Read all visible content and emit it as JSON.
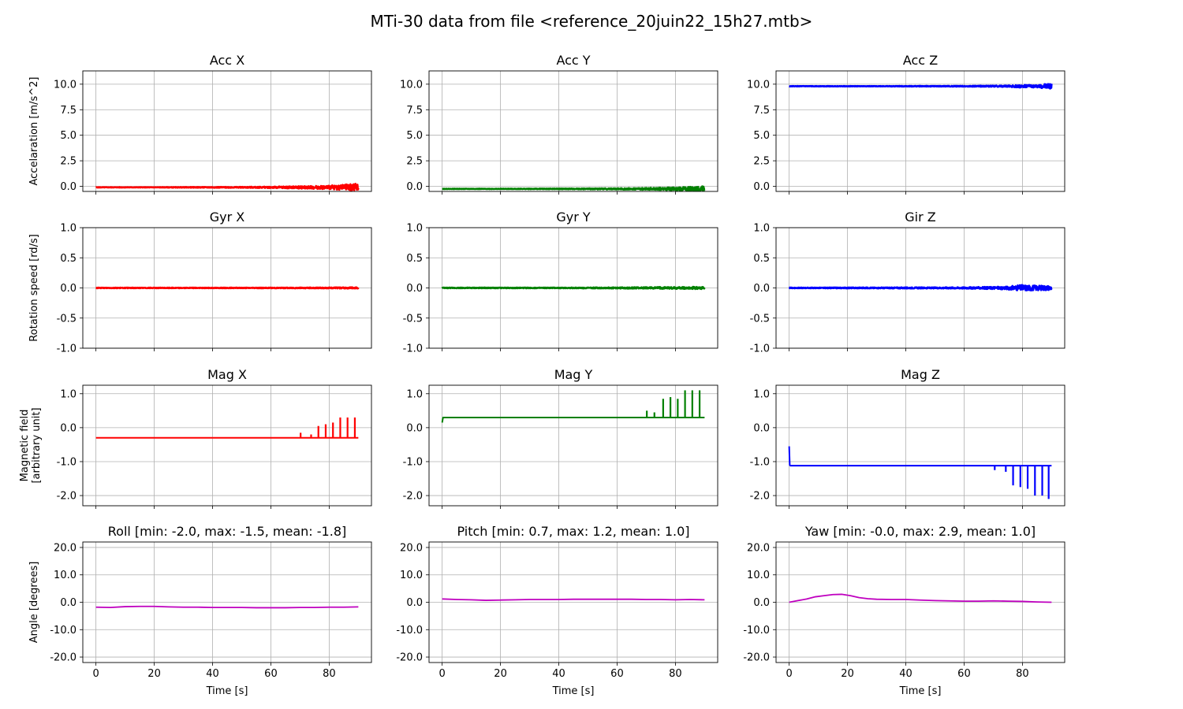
{
  "figure_title": "MTi-30 data from file <reference_20juin22_15h27.mtb>",
  "colors": {
    "acc_x": "#ff0000",
    "acc_y": "#008000",
    "acc_z": "#0000ff",
    "angle": "#bf00bf",
    "grid": "#b0b0b0"
  },
  "row_labels": {
    "row0": [
      "Accelaration [m/s^2]"
    ],
    "row1": [
      "Rotation speed [rd/s]"
    ],
    "row2": [
      "Magnetic field",
      "[arbitrary unit]"
    ],
    "row3": [
      "Angle [degrees]"
    ]
  },
  "xlabel": "Time [s]",
  "chart_data": [
    {
      "type": "line",
      "title": "Acc X",
      "color": "#ff0000",
      "xlim": [
        -4.5,
        94.5
      ],
      "ylim": [
        -0.5,
        11.3
      ],
      "yticks": [
        0.0,
        2.5,
        5.0,
        7.5,
        10.0
      ],
      "ytick_labels": [
        "0.0",
        "2.5",
        "5.0",
        "7.5",
        "10.0"
      ],
      "xticks": [
        0,
        20,
        40,
        60,
        80
      ],
      "xtick_labels": [
        "0",
        "20",
        "40",
        "60",
        "80"
      ],
      "x": [
        0,
        10,
        20,
        30,
        40,
        50,
        60,
        65,
        70,
        75,
        80,
        85,
        88,
        90
      ],
      "y": [
        -0.1,
        -0.1,
        -0.1,
        -0.1,
        -0.1,
        -0.1,
        -0.1,
        -0.1,
        -0.1,
        -0.1,
        -0.1,
        -0.1,
        -0.1,
        -0.1
      ],
      "noise": [
        0.02,
        0.02,
        0.02,
        0.03,
        0.04,
        0.05,
        0.07,
        0.1,
        0.12,
        0.15,
        0.18,
        0.25,
        0.4,
        0.3
      ]
    },
    {
      "type": "line",
      "title": "Acc Y",
      "color": "#008000",
      "xlim": [
        -4.5,
        94.5
      ],
      "ylim": [
        -0.5,
        11.3
      ],
      "yticks": [
        0.0,
        2.5,
        5.0,
        7.5,
        10.0
      ],
      "ytick_labels": [
        "0.0",
        "2.5",
        "5.0",
        "7.5",
        "10.0"
      ],
      "xticks": [
        0,
        20,
        40,
        60,
        80
      ],
      "xtick_labels": [
        "0",
        "20",
        "40",
        "60",
        "80"
      ],
      "x": [
        0,
        10,
        20,
        30,
        40,
        50,
        60,
        65,
        70,
        75,
        80,
        85,
        88,
        90
      ],
      "y": [
        -0.25,
        -0.25,
        -0.25,
        -0.25,
        -0.25,
        -0.25,
        -0.25,
        -0.25,
        -0.25,
        -0.25,
        -0.25,
        -0.25,
        -0.25,
        -0.25
      ],
      "noise": [
        0.02,
        0.02,
        0.02,
        0.03,
        0.04,
        0.05,
        0.06,
        0.08,
        0.1,
        0.12,
        0.15,
        0.2,
        0.25,
        0.25
      ]
    },
    {
      "type": "line",
      "title": "Acc Z",
      "color": "#0000ff",
      "xlim": [
        -4.5,
        94.5
      ],
      "ylim": [
        -0.5,
        11.3
      ],
      "yticks": [
        0.0,
        2.5,
        5.0,
        7.5,
        10.0
      ],
      "ytick_labels": [
        "0.0",
        "2.5",
        "5.0",
        "7.5",
        "10.0"
      ],
      "xticks": [
        0,
        20,
        40,
        60,
        80
      ],
      "xtick_labels": [
        "0",
        "20",
        "40",
        "60",
        "80"
      ],
      "x": [
        0,
        10,
        20,
        30,
        40,
        50,
        60,
        65,
        70,
        75,
        80,
        85,
        88,
        90
      ],
      "y": [
        9.8,
        9.8,
        9.8,
        9.8,
        9.8,
        9.8,
        9.8,
        9.8,
        9.8,
        9.8,
        9.8,
        9.8,
        9.8,
        9.8
      ],
      "noise": [
        0.02,
        0.02,
        0.02,
        0.02,
        0.03,
        0.03,
        0.04,
        0.05,
        0.06,
        0.07,
        0.15,
        0.12,
        0.25,
        0.25
      ]
    },
    {
      "type": "line",
      "title": "Gyr X",
      "color": "#ff0000",
      "xlim": [
        -4.5,
        94.5
      ],
      "ylim": [
        -1.0,
        1.0
      ],
      "yticks": [
        -1.0,
        -0.5,
        0.0,
        0.5,
        1.0
      ],
      "ytick_labels": [
        "-1.0",
        "-0.5",
        "0.0",
        "0.5",
        "1.0"
      ],
      "xticks": [
        0,
        20,
        40,
        60,
        80
      ],
      "xtick_labels": [
        "0",
        "20",
        "40",
        "60",
        "80"
      ],
      "x": [
        0,
        10,
        20,
        30,
        40,
        50,
        60,
        65,
        70,
        75,
        80,
        85,
        88,
        90
      ],
      "y": [
        0,
        0,
        0,
        0,
        0,
        0,
        0,
        0,
        0,
        0,
        0,
        0,
        0,
        0
      ],
      "noise": [
        0.005,
        0.005,
        0.005,
        0.005,
        0.005,
        0.005,
        0.006,
        0.006,
        0.007,
        0.008,
        0.008,
        0.01,
        0.012,
        0.01
      ]
    },
    {
      "type": "line",
      "title": "Gyr Y",
      "color": "#008000",
      "xlim": [
        -4.5,
        94.5
      ],
      "ylim": [
        -1.0,
        1.0
      ],
      "yticks": [
        -1.0,
        -0.5,
        0.0,
        0.5,
        1.0
      ],
      "ytick_labels": [
        "-1.0",
        "-0.5",
        "0.0",
        "0.5",
        "1.0"
      ],
      "xticks": [
        0,
        20,
        40,
        60,
        80
      ],
      "xtick_labels": [
        "0",
        "20",
        "40",
        "60",
        "80"
      ],
      "x": [
        0,
        10,
        20,
        30,
        40,
        50,
        60,
        65,
        70,
        75,
        80,
        85,
        88,
        90
      ],
      "y": [
        0,
        0,
        0,
        0,
        0,
        0,
        0,
        0,
        0,
        0,
        0,
        0,
        0,
        0
      ],
      "noise": [
        0.006,
        0.006,
        0.006,
        0.006,
        0.006,
        0.008,
        0.01,
        0.012,
        0.012,
        0.015,
        0.015,
        0.018,
        0.02,
        0.015
      ]
    },
    {
      "type": "line",
      "title": "Gir Z",
      "color": "#0000ff",
      "xlim": [
        -4.5,
        94.5
      ],
      "ylim": [
        -1.0,
        1.0
      ],
      "yticks": [
        -1.0,
        -0.5,
        0.0,
        0.5,
        1.0
      ],
      "ytick_labels": [
        "-1.0",
        "-0.5",
        "0.0",
        "0.5",
        "1.0"
      ],
      "xticks": [
        0,
        20,
        40,
        60,
        80
      ],
      "xtick_labels": [
        "0",
        "20",
        "40",
        "60",
        "80"
      ],
      "x": [
        0,
        10,
        20,
        30,
        40,
        50,
        60,
        65,
        70,
        75,
        80,
        85,
        88,
        90
      ],
      "y": [
        0,
        0,
        0,
        0,
        0,
        0,
        0,
        0,
        0,
        0,
        0,
        0,
        0,
        0
      ],
      "noise": [
        0.006,
        0.006,
        0.008,
        0.008,
        0.01,
        0.01,
        0.012,
        0.015,
        0.02,
        0.025,
        0.05,
        0.04,
        0.04,
        0.03
      ]
    },
    {
      "type": "line",
      "title": "Mag X",
      "color": "#ff0000",
      "xlim": [
        -4.5,
        94.5
      ],
      "ylim": [
        -2.3,
        1.25
      ],
      "yticks": [
        -2.0,
        -1.0,
        0.0,
        1.0
      ],
      "ytick_labels": [
        "-2.0",
        "-1.0",
        "0.0",
        "1.0"
      ],
      "xticks": [
        0,
        20,
        40,
        60,
        80
      ],
      "xtick_labels": [
        "0",
        "20",
        "40",
        "60",
        "80"
      ],
      "x": [
        0,
        10,
        20,
        30,
        40,
        50,
        60,
        70,
        80,
        90
      ],
      "y": [
        -0.3,
        -0.3,
        -0.3,
        -0.3,
        -0.3,
        -0.3,
        -0.3,
        -0.3,
        -0.3,
        -0.3
      ],
      "spikes": {
        "x": [
          70.2,
          73.8,
          76.3,
          78.8,
          81.3,
          83.8,
          86.3,
          88.8
        ],
        "y": [
          -0.15,
          -0.2,
          0.05,
          0.1,
          0.15,
          0.3,
          0.3,
          0.3
        ]
      }
    },
    {
      "type": "line",
      "title": "Mag Y",
      "color": "#008000",
      "xlim": [
        -4.5,
        94.5
      ],
      "ylim": [
        -2.3,
        1.25
      ],
      "yticks": [
        -2.0,
        -1.0,
        0.0,
        1.0
      ],
      "ytick_labels": [
        "-2.0",
        "-1.0",
        "0.0",
        "1.0"
      ],
      "xticks": [
        0,
        20,
        40,
        60,
        80
      ],
      "xtick_labels": [
        "0",
        "20",
        "40",
        "60",
        "80"
      ],
      "x": [
        0,
        0.3,
        10,
        20,
        30,
        40,
        50,
        60,
        70,
        80,
        90
      ],
      "y": [
        0.15,
        0.3,
        0.3,
        0.3,
        0.3,
        0.3,
        0.3,
        0.3,
        0.3,
        0.3,
        0.3
      ],
      "spikes": {
        "x": [
          70.2,
          72.8,
          75.8,
          78.3,
          80.8,
          83.3,
          85.8,
          88.3
        ],
        "y": [
          0.5,
          0.45,
          0.85,
          0.9,
          0.85,
          1.1,
          1.1,
          1.1
        ]
      }
    },
    {
      "type": "line",
      "title": "Mag Z",
      "color": "#0000ff",
      "xlim": [
        -4.5,
        94.5
      ],
      "ylim": [
        -2.3,
        1.25
      ],
      "yticks": [
        -2.0,
        -1.0,
        0.0,
        1.0
      ],
      "ytick_labels": [
        "-2.0",
        "-1.0",
        "0.0",
        "1.0"
      ],
      "xticks": [
        0,
        20,
        40,
        60,
        80
      ],
      "xtick_labels": [
        "0",
        "20",
        "40",
        "60",
        "80"
      ],
      "x": [
        0,
        0.2,
        0.4,
        10,
        20,
        30,
        40,
        50,
        60,
        70,
        80,
        90
      ],
      "y": [
        -0.55,
        -1.1,
        -1.12,
        -1.12,
        -1.12,
        -1.12,
        -1.12,
        -1.12,
        -1.12,
        -1.12,
        -1.12,
        -1.12
      ],
      "spikes": {
        "x": [
          70.5,
          74.3,
          76.8,
          79.3,
          81.8,
          84.3,
          86.8,
          89.0
        ],
        "y": [
          -1.25,
          -1.3,
          -1.7,
          -1.75,
          -1.8,
          -2.0,
          -2.0,
          -2.1
        ]
      }
    },
    {
      "type": "line",
      "title": "Roll [min: -2.0, max: -1.5, mean: -1.8]",
      "color": "#bf00bf",
      "xlim": [
        -4.5,
        94.5
      ],
      "ylim": [
        -22,
        22
      ],
      "yticks": [
        -20,
        -10,
        0,
        10,
        20
      ],
      "ytick_labels": [
        "-20.0",
        "-10.0",
        "0.0",
        "10.0",
        "20.0"
      ],
      "xticks": [
        0,
        20,
        40,
        60,
        80
      ],
      "xtick_labels": [
        "0",
        "20",
        "40",
        "60",
        "80"
      ],
      "x": [
        0,
        5,
        10,
        15,
        20,
        25,
        30,
        35,
        40,
        45,
        50,
        55,
        60,
        65,
        70,
        75,
        80,
        85,
        90
      ],
      "y": [
        -1.8,
        -1.9,
        -1.6,
        -1.5,
        -1.5,
        -1.7,
        -1.8,
        -1.8,
        -1.9,
        -1.9,
        -1.9,
        -2.0,
        -2.0,
        -2.0,
        -1.9,
        -1.9,
        -1.8,
        -1.8,
        -1.7
      ]
    },
    {
      "type": "line",
      "title": "Pitch [min: 0.7, max: 1.2, mean: 1.0]",
      "color": "#bf00bf",
      "xlim": [
        -4.5,
        94.5
      ],
      "ylim": [
        -22,
        22
      ],
      "yticks": [
        -20,
        -10,
        0,
        10,
        20
      ],
      "ytick_labels": [
        "-20.0",
        "-10.0",
        "0.0",
        "10.0",
        "20.0"
      ],
      "xticks": [
        0,
        20,
        40,
        60,
        80
      ],
      "xtick_labels": [
        "0",
        "20",
        "40",
        "60",
        "80"
      ],
      "x": [
        0,
        5,
        10,
        15,
        20,
        25,
        30,
        35,
        40,
        45,
        50,
        55,
        60,
        65,
        70,
        75,
        80,
        85,
        90
      ],
      "y": [
        1.2,
        1.0,
        0.9,
        0.7,
        0.8,
        0.9,
        1.0,
        1.0,
        1.0,
        1.1,
        1.1,
        1.1,
        1.1,
        1.1,
        1.0,
        1.0,
        0.9,
        1.0,
        0.9
      ]
    },
    {
      "type": "line",
      "title": "Yaw [min: -0.0, max: 2.9, mean: 1.0]",
      "color": "#bf00bf",
      "xlim": [
        -4.5,
        94.5
      ],
      "ylim": [
        -22,
        22
      ],
      "yticks": [
        -20,
        -10,
        0,
        10,
        20
      ],
      "ytick_labels": [
        "-20.0",
        "-10.0",
        "0.0",
        "10.0",
        "20.0"
      ],
      "xticks": [
        0,
        20,
        40,
        60,
        80
      ],
      "xtick_labels": [
        "0",
        "20",
        "40",
        "60",
        "80"
      ],
      "x": [
        0,
        3,
        6,
        9,
        12,
        15,
        18,
        21,
        24,
        27,
        30,
        35,
        40,
        45,
        50,
        55,
        60,
        65,
        70,
        75,
        80,
        85,
        90
      ],
      "y": [
        0.0,
        0.6,
        1.2,
        2.0,
        2.4,
        2.8,
        2.9,
        2.4,
        1.7,
        1.3,
        1.1,
        1.0,
        1.0,
        0.8,
        0.6,
        0.5,
        0.4,
        0.4,
        0.5,
        0.4,
        0.3,
        0.1,
        0.0
      ]
    }
  ]
}
